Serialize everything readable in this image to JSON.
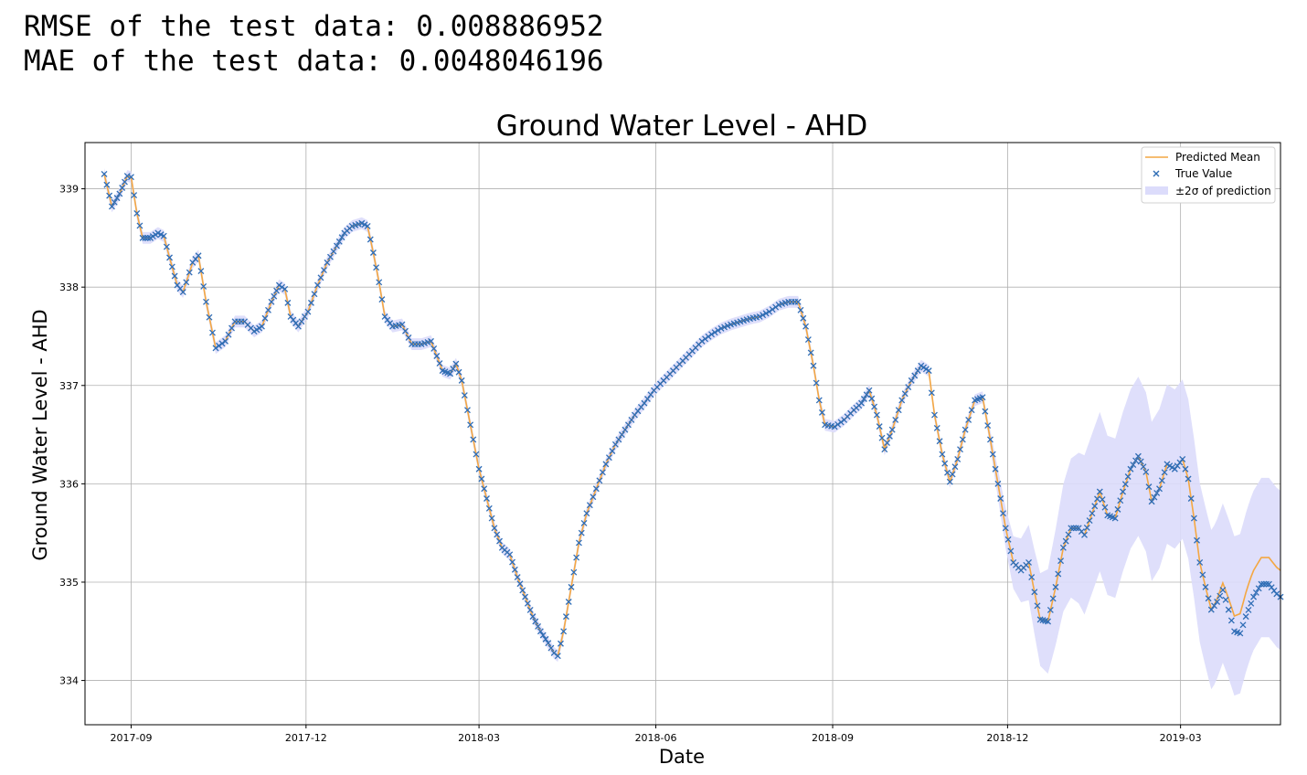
{
  "console": {
    "rmse_line": "RMSE of the test data: 0.008886952",
    "mae_line": "MAE of the test data: 0.0048046196"
  },
  "colors": {
    "predicted_mean": "#f4a742",
    "true_value": "#2f6db5",
    "band": "#dcdcfb",
    "grid": "#b0b0b0"
  },
  "chart_data": {
    "type": "line",
    "title": "Ground Water Level - AHD",
    "xlabel": "Date",
    "ylabel": "Ground Water Level - AHD",
    "grid": true,
    "legend_placement": "top-right",
    "xlim": [
      "2017-08-08",
      "2019-04-22"
    ],
    "ylim": [
      333.55,
      339.47
    ],
    "x_ticks": [
      "2017-09-01",
      "2017-12-01",
      "2018-03-01",
      "2018-06-01",
      "2018-09-01",
      "2018-12-01",
      "2019-03-01"
    ],
    "x_tick_labels": [
      "2017-09",
      "2017-12",
      "2018-03",
      "2018-06",
      "2018-09",
      "2018-12",
      "2019-03"
    ],
    "y_ticks": [
      334,
      335,
      336,
      337,
      338,
      339
    ],
    "y_tick_labels": [
      "334",
      "335",
      "336",
      "337",
      "338",
      "339"
    ],
    "legend": [
      "Predicted Mean",
      "True Value",
      "±2σ of prediction"
    ],
    "true_value_points": [
      [
        "2017-08-18",
        339.15
      ],
      [
        "2017-08-22",
        338.82
      ],
      [
        "2017-08-26",
        338.95
      ],
      [
        "2017-08-30",
        339.13
      ],
      [
        "2017-09-01",
        339.12
      ],
      [
        "2017-09-04",
        338.75
      ],
      [
        "2017-09-07",
        338.5
      ],
      [
        "2017-09-11",
        338.5
      ],
      [
        "2017-09-15",
        338.55
      ],
      [
        "2017-09-18",
        338.52
      ],
      [
        "2017-09-21",
        338.3
      ],
      [
        "2017-09-25",
        338.02
      ],
      [
        "2017-09-28",
        337.95
      ],
      [
        "2017-10-03",
        338.25
      ],
      [
        "2017-10-06",
        338.32
      ],
      [
        "2017-10-10",
        337.85
      ],
      [
        "2017-10-15",
        337.38
      ],
      [
        "2017-10-20",
        337.45
      ],
      [
        "2017-10-25",
        337.65
      ],
      [
        "2017-10-30",
        337.65
      ],
      [
        "2017-11-04",
        337.55
      ],
      [
        "2017-11-08",
        337.6
      ],
      [
        "2017-11-13",
        337.85
      ],
      [
        "2017-11-17",
        338.02
      ],
      [
        "2017-11-20",
        337.98
      ],
      [
        "2017-11-23",
        337.7
      ],
      [
        "2017-11-27",
        337.6
      ],
      [
        "2017-12-02",
        337.75
      ],
      [
        "2017-12-07",
        338.02
      ],
      [
        "2017-12-12",
        338.25
      ],
      [
        "2017-12-17",
        338.42
      ],
      [
        "2017-12-21",
        338.55
      ],
      [
        "2017-12-25",
        338.62
      ],
      [
        "2017-12-30",
        338.65
      ],
      [
        "2018-01-02",
        338.62
      ],
      [
        "2018-01-05",
        338.35
      ],
      [
        "2018-01-08",
        338.05
      ],
      [
        "2018-01-11",
        337.7
      ],
      [
        "2018-01-15",
        337.6
      ],
      [
        "2018-01-20",
        337.62
      ],
      [
        "2018-01-25",
        337.42
      ],
      [
        "2018-01-30",
        337.42
      ],
      [
        "2018-02-04",
        337.45
      ],
      [
        "2018-02-07",
        337.3
      ],
      [
        "2018-02-10",
        337.15
      ],
      [
        "2018-02-14",
        337.12
      ],
      [
        "2018-02-17",
        337.22
      ],
      [
        "2018-02-20",
        337.05
      ],
      [
        "2018-02-23",
        336.75
      ],
      [
        "2018-02-26",
        336.45
      ],
      [
        "2018-03-01",
        336.15
      ],
      [
        "2018-03-05",
        335.85
      ],
      [
        "2018-03-09",
        335.55
      ],
      [
        "2018-03-13",
        335.35
      ],
      [
        "2018-03-17",
        335.28
      ],
      [
        "2018-03-21",
        335.05
      ],
      [
        "2018-03-25",
        334.85
      ],
      [
        "2018-03-29",
        334.65
      ],
      [
        "2018-04-02",
        334.5
      ],
      [
        "2018-04-06",
        334.38
      ],
      [
        "2018-04-09",
        334.28
      ],
      [
        "2018-04-11",
        334.25
      ],
      [
        "2018-04-14",
        334.5
      ],
      [
        "2018-04-18",
        334.95
      ],
      [
        "2018-04-22",
        335.4
      ],
      [
        "2018-04-26",
        335.7
      ],
      [
        "2018-05-01",
        335.95
      ],
      [
        "2018-05-06",
        336.2
      ],
      [
        "2018-05-11",
        336.4
      ],
      [
        "2018-05-16",
        336.55
      ],
      [
        "2018-05-21",
        336.7
      ],
      [
        "2018-05-26",
        336.82
      ],
      [
        "2018-05-31",
        336.95
      ],
      [
        "2018-06-05",
        337.05
      ],
      [
        "2018-06-10",
        337.15
      ],
      [
        "2018-06-15",
        337.25
      ],
      [
        "2018-06-20",
        337.35
      ],
      [
        "2018-06-25",
        337.45
      ],
      [
        "2018-06-30",
        337.52
      ],
      [
        "2018-07-05",
        337.58
      ],
      [
        "2018-07-10",
        337.62
      ],
      [
        "2018-07-15",
        337.65
      ],
      [
        "2018-07-20",
        337.68
      ],
      [
        "2018-07-25",
        337.7
      ],
      [
        "2018-07-30",
        337.75
      ],
      [
        "2018-08-04",
        337.82
      ],
      [
        "2018-08-09",
        337.85
      ],
      [
        "2018-08-14",
        337.85
      ],
      [
        "2018-08-18",
        337.6
      ],
      [
        "2018-08-22",
        337.2
      ],
      [
        "2018-08-25",
        336.85
      ],
      [
        "2018-08-28",
        336.6
      ],
      [
        "2018-09-02",
        336.58
      ],
      [
        "2018-09-07",
        336.65
      ],
      [
        "2018-09-12",
        336.75
      ],
      [
        "2018-09-16",
        336.82
      ],
      [
        "2018-09-20",
        336.95
      ],
      [
        "2018-09-24",
        336.7
      ],
      [
        "2018-09-28",
        336.35
      ],
      [
        "2018-10-02",
        336.55
      ],
      [
        "2018-10-07",
        336.85
      ],
      [
        "2018-10-12",
        337.05
      ],
      [
        "2018-10-17",
        337.2
      ],
      [
        "2018-10-21",
        337.15
      ],
      [
        "2018-10-24",
        336.7
      ],
      [
        "2018-10-28",
        336.3
      ],
      [
        "2018-11-01",
        336.02
      ],
      [
        "2018-11-05",
        336.25
      ],
      [
        "2018-11-09",
        336.55
      ],
      [
        "2018-11-14",
        336.85
      ],
      [
        "2018-11-18",
        336.88
      ],
      [
        "2018-11-22",
        336.45
      ],
      [
        "2018-11-26",
        336.0
      ],
      [
        "2018-11-30",
        335.55
      ],
      [
        "2018-12-04",
        335.2
      ],
      [
        "2018-12-08",
        335.12
      ],
      [
        "2018-12-12",
        335.2
      ],
      [
        "2018-12-15",
        334.9
      ],
      [
        "2018-12-18",
        334.62
      ],
      [
        "2018-12-22",
        334.6
      ],
      [
        "2018-12-26",
        334.95
      ],
      [
        "2018-12-30",
        335.35
      ],
      [
        "2019-01-03",
        335.55
      ],
      [
        "2019-01-07",
        335.55
      ],
      [
        "2019-01-10",
        335.48
      ],
      [
        "2019-01-14",
        335.7
      ],
      [
        "2019-01-18",
        335.92
      ],
      [
        "2019-01-22",
        335.68
      ],
      [
        "2019-01-26",
        335.65
      ],
      [
        "2019-01-30",
        335.92
      ],
      [
        "2019-02-03",
        336.15
      ],
      [
        "2019-02-07",
        336.28
      ],
      [
        "2019-02-11",
        336.12
      ],
      [
        "2019-02-14",
        335.82
      ],
      [
        "2019-02-18",
        335.95
      ],
      [
        "2019-02-22",
        336.2
      ],
      [
        "2019-02-26",
        336.15
      ],
      [
        "2019-03-02",
        336.25
      ],
      [
        "2019-03-05",
        336.05
      ],
      [
        "2019-03-08",
        335.65
      ],
      [
        "2019-03-11",
        335.2
      ],
      [
        "2019-03-14",
        334.95
      ],
      [
        "2019-03-17",
        334.72
      ],
      [
        "2019-03-20",
        334.8
      ],
      [
        "2019-03-23",
        334.92
      ],
      [
        "2019-03-26",
        334.72
      ],
      [
        "2019-03-29",
        334.5
      ],
      [
        "2019-04-01",
        334.48
      ],
      [
        "2019-04-04",
        334.65
      ],
      [
        "2019-04-08",
        334.85
      ],
      [
        "2019-04-12",
        334.98
      ],
      [
        "2019-04-16",
        334.98
      ],
      [
        "2019-04-20",
        334.88
      ],
      [
        "2019-04-22",
        334.85
      ]
    ],
    "notes": ""
  },
  "legend_labels": {
    "predicted_mean": "Predicted Mean",
    "true_value": "True Value",
    "band": "±2σ of prediction"
  }
}
